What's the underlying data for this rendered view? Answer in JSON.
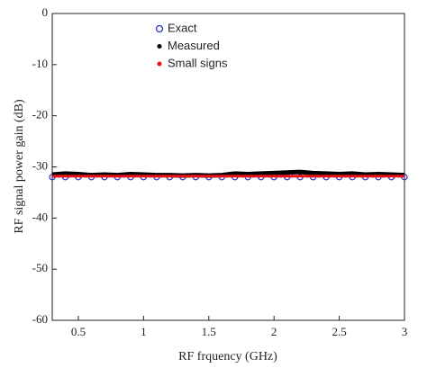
{
  "chart_data": {
    "type": "line",
    "x_label": "RF frquency (GHz)",
    "y_label": "RF signal power gain (dB)",
    "x": [
      0.3,
      0.4,
      0.5,
      0.6,
      0.7,
      0.8,
      0.9,
      1.0,
      1.1,
      1.2,
      1.3,
      1.4,
      1.5,
      1.6,
      1.7,
      1.8,
      1.9,
      2.0,
      2.1,
      2.2,
      2.3,
      2.4,
      2.5,
      2.6,
      2.7,
      2.8,
      2.9,
      3.0
    ],
    "series": [
      {
        "name": "Exact",
        "color": "#2233cc",
        "style": "circles",
        "values": [
          -32,
          -32,
          -32,
          -32,
          -32,
          -32,
          -32,
          -32,
          -32,
          -32,
          -32,
          -32,
          -32,
          -32,
          -32,
          -32,
          -32,
          -32,
          -32,
          -32,
          -32,
          -32,
          -32,
          -32,
          -32,
          -32,
          -32,
          -32
        ]
      },
      {
        "name": "Measured",
        "color": "#000000",
        "style": "thick",
        "values": [
          -31.5,
          -31.3,
          -31.4,
          -31.6,
          -31.5,
          -31.6,
          -31.4,
          -31.5,
          -31.6,
          -31.6,
          -31.7,
          -31.6,
          -31.7,
          -31.6,
          -31.3,
          -31.4,
          -31.3,
          -31.2,
          -31.1,
          -31.0,
          -31.2,
          -31.3,
          -31.4,
          -31.3,
          -31.5,
          -31.4,
          -31.5,
          -31.6
        ]
      },
      {
        "name": "Small signs",
        "color": "#ee1111",
        "style": "line",
        "values": [
          -31.8,
          -31.8,
          -31.8,
          -31.8,
          -31.8,
          -31.8,
          -31.8,
          -31.8,
          -31.8,
          -31.8,
          -31.8,
          -31.8,
          -31.8,
          -31.8,
          -31.8,
          -31.8,
          -31.8,
          -31.8,
          -31.8,
          -31.8,
          -31.8,
          -31.8,
          -31.8,
          -31.8,
          -31.8,
          -31.8,
          -31.8,
          -31.8
        ]
      }
    ],
    "xlim": [
      0.3,
      3
    ],
    "xticks": [
      0.5,
      1,
      1.5,
      2,
      2.5,
      3
    ],
    "ylim": [
      -60,
      0
    ],
    "yticks": [
      0,
      -10,
      -20,
      -30,
      -40,
      -50,
      -60
    ]
  }
}
